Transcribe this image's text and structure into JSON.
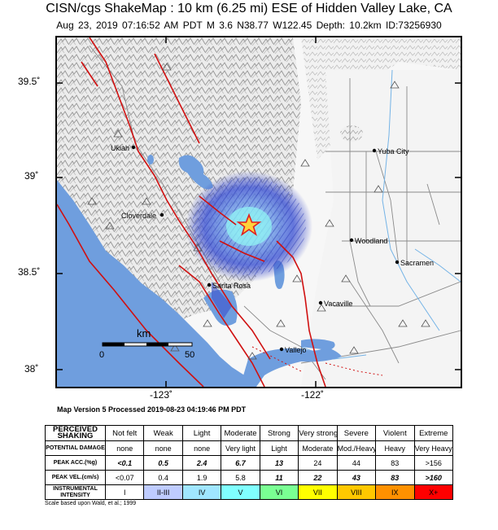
{
  "header": {
    "title": "CISN/cgs ShakeMap : 10 km (6.25 mi) ESE of Hidden Valley Lake, CA",
    "subtitle": "Aug 23, 2019 07:16:52 AM PDT   M 3.6   N38.77 W122.45   Depth: 10.2km   ID:73256930"
  },
  "axes": {
    "lat_labels": [
      "39.5˚",
      "39˚",
      "38.5˚",
      "38˚"
    ],
    "lon_labels": [
      "-123˚",
      "-122˚"
    ]
  },
  "places": [
    "Ukiah",
    "Yuba City",
    "Cloverdale",
    "Woodland",
    "Sacramen",
    "Santa Rosa",
    "Vacaville",
    "Vallejo"
  ],
  "scalebar": {
    "unit": "km",
    "start": "0",
    "end": "50"
  },
  "footer": {
    "version": "Map Version 5 Processed 2019-08-23 04:19:46 PM PDT",
    "scale_note": "Scale based upon Wald, et al.; 1999"
  },
  "legend": {
    "row_headers": {
      "perceived": "PERCEIVED SHAKING",
      "damage": "POTENTIAL DAMAGE",
      "acc": "PEAK ACC.(%g)",
      "vel": "PEAK VEL.(cm/s)",
      "intensity": "INSTRUMENTAL INTENSITY"
    },
    "perceived": [
      "Not felt",
      "Weak",
      "Light",
      "Moderate",
      "Strong",
      "Very strong",
      "Severe",
      "Violent",
      "Extreme"
    ],
    "damage": [
      "none",
      "none",
      "none",
      "Very light",
      "Light",
      "Moderate",
      "Mod./Heavy",
      "Heavy",
      "Very Heavy"
    ],
    "acc": [
      "<0.1",
      "0.5",
      "2.4",
      "6.7",
      "13",
      "24",
      "44",
      "83",
      ">156"
    ],
    "vel": [
      "<0.07",
      "0.4",
      "1.9",
      "5.8",
      "11",
      "22",
      "43",
      "83",
      ">160"
    ],
    "intensity": [
      "I",
      "II-III",
      "IV",
      "V",
      "VI",
      "VII",
      "VIII",
      "IX",
      "X+"
    ],
    "colors": [
      "#ffffff",
      "#bfccff",
      "#a0e6ff",
      "#80ffff",
      "#7aff93",
      "#ffff00",
      "#ffc800",
      "#ff9100",
      "#ff0000"
    ]
  },
  "colors": {
    "ocean": "#6f9ede",
    "fault": "#d01010",
    "epicenter_star": "#e02020"
  }
}
